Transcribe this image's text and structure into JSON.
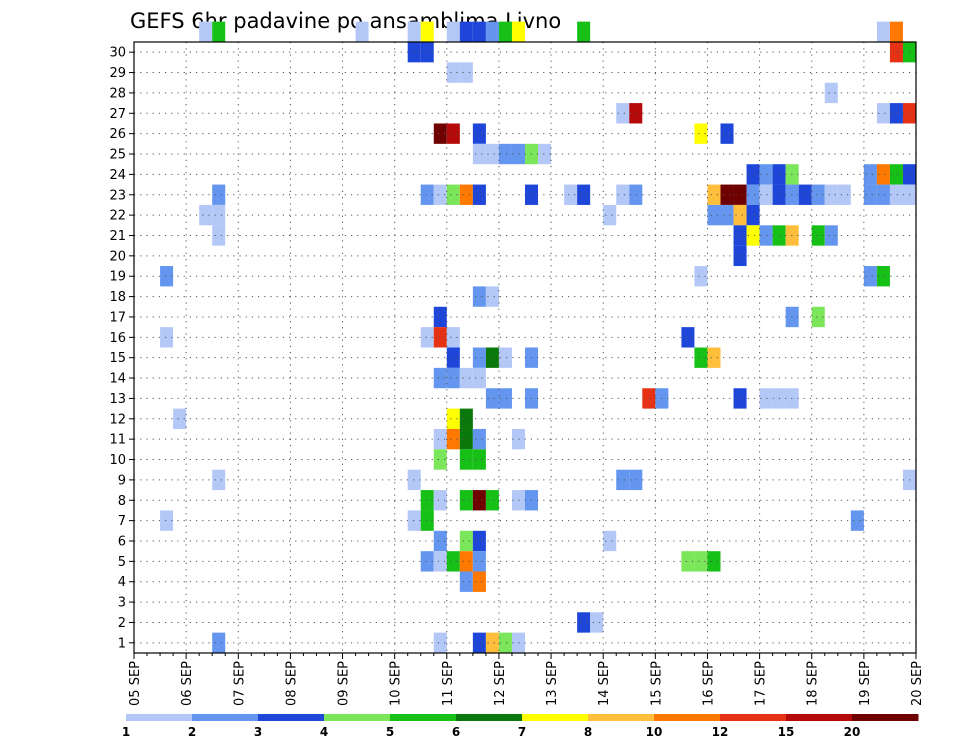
{
  "chart_data": {
    "type": "heatmap",
    "title": "GEFS 6hr padavine po ansamblima Livno",
    "x_tick_labels": [
      "05 SEP",
      "06 SEP",
      "07 SEP",
      "08 SEP",
      "09 SEP",
      "10 SEP",
      "11 SEP",
      "12 SEP",
      "13 SEP",
      "14 SEP",
      "15 SEP",
      "16 SEP",
      "17 SEP",
      "18 SEP",
      "19 SEP",
      "20 SEP"
    ],
    "y_tick_labels": [
      "1",
      "2",
      "3",
      "4",
      "5",
      "6",
      "7",
      "8",
      "9",
      "10",
      "11",
      "12",
      "13",
      "14",
      "15",
      "16",
      "17",
      "18",
      "19",
      "20",
      "21",
      "22",
      "23",
      "24",
      "25",
      "26",
      "27",
      "28",
      "29",
      "30"
    ],
    "x_range": [
      0,
      60
    ],
    "y_range": [
      0,
      30
    ],
    "grid": true,
    "legend": {
      "position": "bottom",
      "labels": [
        "1",
        "2",
        "3",
        "4",
        "5",
        "6",
        "7",
        "8",
        "10",
        "12",
        "15",
        "20"
      ],
      "colors": [
        "#b4c8f8",
        "#6496f0",
        "#1e46d8",
        "#7ce65a",
        "#16c016",
        "#0a780a",
        "#ffff00",
        "#ffbe3c",
        "#ff7800",
        "#e63214",
        "#b40a0a",
        "#6e0000"
      ]
    },
    "cells": [
      {
        "m": 30,
        "t": 5,
        "v": 1.5
      },
      {
        "m": 30,
        "t": 6,
        "v": 5.5
      },
      {
        "m": 30,
        "t": 17,
        "v": 1.5
      },
      {
        "m": 30,
        "t": 21,
        "v": 1.5
      },
      {
        "m": 30,
        "t": 22,
        "v": 7.5
      },
      {
        "m": 30,
        "t": 24,
        "v": 1.5
      },
      {
        "m": 30,
        "t": 25,
        "v": 3.5
      },
      {
        "m": 30,
        "t": 26,
        "v": 3.5
      },
      {
        "m": 30,
        "t": 27,
        "v": 2.5
      },
      {
        "m": 30,
        "t": 28,
        "v": 5.5
      },
      {
        "m": 30,
        "t": 29,
        "v": 7.5
      },
      {
        "m": 30,
        "t": 34,
        "v": 5.5
      },
      {
        "m": 30,
        "t": 57,
        "v": 1.5
      },
      {
        "m": 30,
        "t": 58,
        "v": 11
      },
      {
        "m": 29,
        "t": 21,
        "v": 3.5
      },
      {
        "m": 29,
        "t": 22,
        "v": 3.5
      },
      {
        "m": 29,
        "t": 58,
        "v": 13
      },
      {
        "m": 29,
        "t": 59,
        "v": 5.5
      },
      {
        "m": 28,
        "t": 24,
        "v": 1.5
      },
      {
        "m": 28,
        "t": 25,
        "v": 1.5
      },
      {
        "m": 27,
        "t": 53,
        "v": 1.5
      },
      {
        "m": 26,
        "t": 37,
        "v": 1.5
      },
      {
        "m": 26,
        "t": 38,
        "v": 17
      },
      {
        "m": 26,
        "t": 57,
        "v": 1.5
      },
      {
        "m": 26,
        "t": 58,
        "v": 3.5
      },
      {
        "m": 26,
        "t": 59,
        "v": 13
      },
      {
        "m": 25,
        "t": 23,
        "v": 25
      },
      {
        "m": 25,
        "t": 24,
        "v": 17
      },
      {
        "m": 25,
        "t": 26,
        "v": 3.5
      },
      {
        "m": 25,
        "t": 43,
        "v": 7.5
      },
      {
        "m": 25,
        "t": 45,
        "v": 3.5
      },
      {
        "m": 24,
        "t": 26,
        "v": 1.5
      },
      {
        "m": 24,
        "t": 27,
        "v": 1.5
      },
      {
        "m": 24,
        "t": 28,
        "v": 2.5
      },
      {
        "m": 24,
        "t": 29,
        "v": 2.5
      },
      {
        "m": 24,
        "t": 30,
        "v": 4.5
      },
      {
        "m": 24,
        "t": 31,
        "v": 1.5
      },
      {
        "m": 23,
        "t": 47,
        "v": 3.5
      },
      {
        "m": 23,
        "t": 48,
        "v": 2.5
      },
      {
        "m": 23,
        "t": 49,
        "v": 3.5
      },
      {
        "m": 23,
        "t": 50,
        "v": 4.5
      },
      {
        "m": 23,
        "t": 56,
        "v": 2.5
      },
      {
        "m": 23,
        "t": 57,
        "v": 11
      },
      {
        "m": 23,
        "t": 58,
        "v": 5.5
      },
      {
        "m": 23,
        "t": 59,
        "v": 3.5
      },
      {
        "m": 22,
        "t": 6,
        "v": 2.5
      },
      {
        "m": 22,
        "t": 22,
        "v": 2.5
      },
      {
        "m": 22,
        "t": 23,
        "v": 1.5
      },
      {
        "m": 22,
        "t": 24,
        "v": 4.5
      },
      {
        "m": 22,
        "t": 25,
        "v": 11
      },
      {
        "m": 22,
        "t": 26,
        "v": 3.5
      },
      {
        "m": 22,
        "t": 30,
        "v": 3.5
      },
      {
        "m": 22,
        "t": 33,
        "v": 1.5
      },
      {
        "m": 22,
        "t": 34,
        "v": 3.5
      },
      {
        "m": 22,
        "t": 37,
        "v": 1.5
      },
      {
        "m": 22,
        "t": 38,
        "v": 2.5
      },
      {
        "m": 22,
        "t": 44,
        "v": 9
      },
      {
        "m": 22,
        "t": 45,
        "v": 25
      },
      {
        "m": 22,
        "t": 46,
        "v": 25
      },
      {
        "m": 22,
        "t": 47,
        "v": 2.5
      },
      {
        "m": 22,
        "t": 48,
        "v": 1.5
      },
      {
        "m": 22,
        "t": 49,
        "v": 3.5
      },
      {
        "m": 22,
        "t": 50,
        "v": 2.5
      },
      {
        "m": 22,
        "t": 51,
        "v": 3.5
      },
      {
        "m": 22,
        "t": 52,
        "v": 2.5
      },
      {
        "m": 22,
        "t": 53,
        "v": 1.5
      },
      {
        "m": 22,
        "t": 54,
        "v": 1.5
      },
      {
        "m": 22,
        "t": 56,
        "v": 2.5
      },
      {
        "m": 22,
        "t": 57,
        "v": 2.5
      },
      {
        "m": 22,
        "t": 58,
        "v": 1.5
      },
      {
        "m": 22,
        "t": 59,
        "v": 1.5
      },
      {
        "m": 21,
        "t": 5,
        "v": 1.5
      },
      {
        "m": 21,
        "t": 6,
        "v": 1.5
      },
      {
        "m": 21,
        "t": 36,
        "v": 1.5
      },
      {
        "m": 21,
        "t": 44,
        "v": 2.5
      },
      {
        "m": 21,
        "t": 45,
        "v": 2.5
      },
      {
        "m": 21,
        "t": 46,
        "v": 9
      },
      {
        "m": 21,
        "t": 47,
        "v": 3.5
      },
      {
        "m": 20,
        "t": 6,
        "v": 1.5
      },
      {
        "m": 20,
        "t": 46,
        "v": 3.5
      },
      {
        "m": 20,
        "t": 47,
        "v": 7.5
      },
      {
        "m": 20,
        "t": 48,
        "v": 2.5
      },
      {
        "m": 20,
        "t": 49,
        "v": 5.5
      },
      {
        "m": 20,
        "t": 50,
        "v": 9
      },
      {
        "m": 20,
        "t": 52,
        "v": 5.5
      },
      {
        "m": 20,
        "t": 53,
        "v": 2.5
      },
      {
        "m": 19,
        "t": 46,
        "v": 3.5
      },
      {
        "m": 18,
        "t": 2,
        "v": 2.5
      },
      {
        "m": 18,
        "t": 43,
        "v": 1.5
      },
      {
        "m": 18,
        "t": 56,
        "v": 2.5
      },
      {
        "m": 18,
        "t": 57,
        "v": 5.5
      },
      {
        "m": 17,
        "t": 26,
        "v": 2.5
      },
      {
        "m": 17,
        "t": 27,
        "v": 1.5
      },
      {
        "m": 16,
        "t": 23,
        "v": 3.5
      },
      {
        "m": 16,
        "t": 50,
        "v": 2.5
      },
      {
        "m": 16,
        "t": 52,
        "v": 4.5
      },
      {
        "m": 15,
        "t": 2,
        "v": 1.5
      },
      {
        "m": 15,
        "t": 22,
        "v": 1.5
      },
      {
        "m": 15,
        "t": 23,
        "v": 13
      },
      {
        "m": 15,
        "t": 24,
        "v": 1.5
      },
      {
        "m": 15,
        "t": 42,
        "v": 3.5
      },
      {
        "m": 14,
        "t": 24,
        "v": 3.5
      },
      {
        "m": 14,
        "t": 26,
        "v": 2.5
      },
      {
        "m": 14,
        "t": 27,
        "v": 6.5
      },
      {
        "m": 14,
        "t": 28,
        "v": 1.5
      },
      {
        "m": 14,
        "t": 30,
        "v": 2.5
      },
      {
        "m": 14,
        "t": 43,
        "v": 5.5
      },
      {
        "m": 14,
        "t": 44,
        "v": 9
      },
      {
        "m": 13,
        "t": 23,
        "v": 2.5
      },
      {
        "m": 13,
        "t": 24,
        "v": 2.5
      },
      {
        "m": 13,
        "t": 25,
        "v": 1.5
      },
      {
        "m": 13,
        "t": 26,
        "v": 1.5
      },
      {
        "m": 12,
        "t": 27,
        "v": 2.5
      },
      {
        "m": 12,
        "t": 28,
        "v": 2.5
      },
      {
        "m": 12,
        "t": 30,
        "v": 2.5
      },
      {
        "m": 12,
        "t": 39,
        "v": 13
      },
      {
        "m": 12,
        "t": 40,
        "v": 2.5
      },
      {
        "m": 12,
        "t": 46,
        "v": 3.5
      },
      {
        "m": 12,
        "t": 48,
        "v": 1.5
      },
      {
        "m": 12,
        "t": 49,
        "v": 1.5
      },
      {
        "m": 12,
        "t": 50,
        "v": 1.5
      },
      {
        "m": 11,
        "t": 3,
        "v": 1.5
      },
      {
        "m": 11,
        "t": 24,
        "v": 7.5
      },
      {
        "m": 11,
        "t": 25,
        "v": 6.5
      },
      {
        "m": 10,
        "t": 23,
        "v": 1.5
      },
      {
        "m": 10,
        "t": 24,
        "v": 11
      },
      {
        "m": 10,
        "t": 25,
        "v": 6.5
      },
      {
        "m": 10,
        "t": 26,
        "v": 2.5
      },
      {
        "m": 10,
        "t": 29,
        "v": 1.5
      },
      {
        "m": 9,
        "t": 23,
        "v": 4.5
      },
      {
        "m": 9,
        "t": 25,
        "v": 5.5
      },
      {
        "m": 9,
        "t": 26,
        "v": 5.5
      },
      {
        "m": 8,
        "t": 6,
        "v": 1.5
      },
      {
        "m": 8,
        "t": 21,
        "v": 1.5
      },
      {
        "m": 8,
        "t": 37,
        "v": 2.5
      },
      {
        "m": 8,
        "t": 38,
        "v": 2.5
      },
      {
        "m": 8,
        "t": 59,
        "v": 1.5
      },
      {
        "m": 7,
        "t": 22,
        "v": 5.5
      },
      {
        "m": 7,
        "t": 23,
        "v": 1.5
      },
      {
        "m": 7,
        "t": 25,
        "v": 5.5
      },
      {
        "m": 7,
        "t": 26,
        "v": 25
      },
      {
        "m": 7,
        "t": 27,
        "v": 5.5
      },
      {
        "m": 7,
        "t": 29,
        "v": 1.5
      },
      {
        "m": 7,
        "t": 30,
        "v": 2.5
      },
      {
        "m": 6,
        "t": 2,
        "v": 1.5
      },
      {
        "m": 6,
        "t": 21,
        "v": 1.5
      },
      {
        "m": 6,
        "t": 22,
        "v": 5.5
      },
      {
        "m": 6,
        "t": 55,
        "v": 2.5
      },
      {
        "m": 5,
        "t": 23,
        "v": 2.5
      },
      {
        "m": 5,
        "t": 25,
        "v": 4.5
      },
      {
        "m": 5,
        "t": 26,
        "v": 3.5
      },
      {
        "m": 5,
        "t": 36,
        "v": 1.5
      },
      {
        "m": 4,
        "t": 22,
        "v": 2.5
      },
      {
        "m": 4,
        "t": 23,
        "v": 1.5
      },
      {
        "m": 4,
        "t": 24,
        "v": 5.5
      },
      {
        "m": 4,
        "t": 25,
        "v": 11
      },
      {
        "m": 4,
        "t": 26,
        "v": 2.5
      },
      {
        "m": 4,
        "t": 42,
        "v": 4.5
      },
      {
        "m": 4,
        "t": 43,
        "v": 4.5
      },
      {
        "m": 4,
        "t": 44,
        "v": 5.5
      },
      {
        "m": 3,
        "t": 25,
        "v": 2.5
      },
      {
        "m": 3,
        "t": 26,
        "v": 11
      },
      {
        "m": 1,
        "t": 34,
        "v": 3.5
      },
      {
        "m": 1,
        "t": 35,
        "v": 1.5
      },
      {
        "m": 0,
        "t": 23,
        "v": 1.5
      },
      {
        "m": 0,
        "t": 26,
        "v": 3.5
      },
      {
        "m": 0,
        "t": 27,
        "v": 9
      },
      {
        "m": 0,
        "t": 28,
        "v": 4.5
      },
      {
        "m": 0,
        "t": 29,
        "v": 1.5
      },
      {
        "m": 0,
        "t": 6,
        "v": 2.5
      }
    ]
  }
}
